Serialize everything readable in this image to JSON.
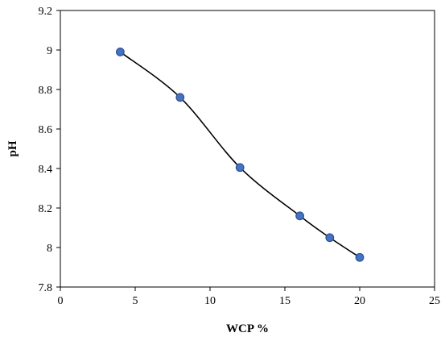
{
  "chart_data": {
    "type": "line",
    "xlabel": "WCP %",
    "ylabel": "pH",
    "xlim": [
      0,
      25
    ],
    "ylim": [
      7.8,
      9.2
    ],
    "x_ticks": [
      0,
      5,
      10,
      15,
      20,
      25
    ],
    "y_ticks": [
      7.8,
      8,
      8.2,
      8.4,
      8.6,
      8.8,
      9,
      9.2
    ],
    "x_tick_labels": [
      "0",
      "5",
      "10",
      "15",
      "20",
      "25"
    ],
    "y_tick_labels": [
      "7.8",
      "8",
      "8.2",
      "8.4",
      "8.6",
      "8.8",
      "9",
      "9.2"
    ],
    "grid": false,
    "legend": "none",
    "smooth": true,
    "marker_color": "#4472C4",
    "line_color": "#000000",
    "series": [
      {
        "x": [
          4,
          8,
          12,
          16,
          18,
          20
        ],
        "y": [
          8.99,
          8.76,
          8.405,
          8.16,
          8.05,
          7.95
        ]
      }
    ]
  }
}
